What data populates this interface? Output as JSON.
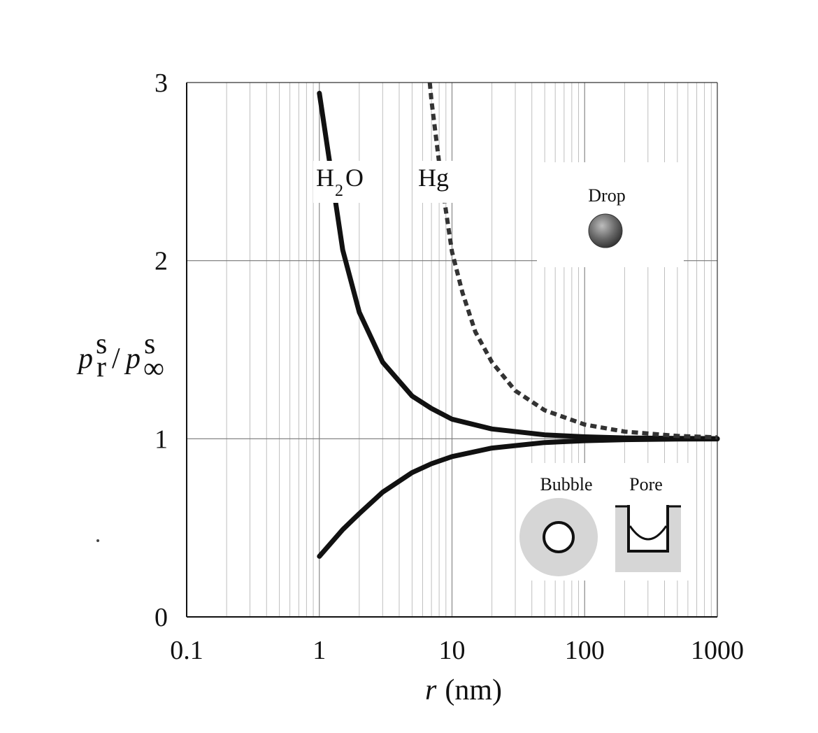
{
  "chart_data": {
    "type": "line",
    "xscale": "log",
    "xlim": [
      0.1,
      1000
    ],
    "ylim": [
      0,
      3
    ],
    "x_ticks": [
      "0.1",
      "1",
      "10",
      "100",
      "1000"
    ],
    "y_ticks": [
      "0",
      "1",
      "2",
      "3"
    ],
    "xlabel_var": "r",
    "xlabel_unit": "(nm)",
    "ylabel": "p_r^s / p_∞^s",
    "grid": true,
    "series": [
      {
        "name": "H2O",
        "style": "solid",
        "color": "#111111",
        "x": [
          1,
          1.5,
          2,
          3,
          5,
          7,
          10,
          20,
          50,
          100,
          200,
          500,
          1000
        ],
        "y": [
          2.94,
          2.06,
          1.71,
          1.43,
          1.24,
          1.17,
          1.11,
          1.055,
          1.022,
          1.011,
          1.005,
          1.002,
          1.001
        ]
      },
      {
        "name": "H2O",
        "style": "solid",
        "color": "#111111",
        "x": [
          1,
          1.5,
          2,
          3,
          5,
          7,
          10,
          20,
          50,
          100,
          200,
          500,
          1000
        ],
        "y": [
          0.34,
          0.49,
          0.58,
          0.7,
          0.81,
          0.86,
          0.9,
          0.948,
          0.979,
          0.989,
          0.995,
          0.998,
          0.999
        ]
      },
      {
        "name": "Hg",
        "style": "dashed",
        "color": "#333333",
        "x": [
          6.8,
          7,
          8,
          9,
          10,
          12,
          15,
          20,
          30,
          50,
          100,
          200,
          500,
          1000
        ],
        "y": [
          3.0,
          2.9,
          2.55,
          2.28,
          2.05,
          1.82,
          1.6,
          1.43,
          1.27,
          1.16,
          1.08,
          1.04,
          1.016,
          1.008
        ]
      }
    ],
    "curve_labels": {
      "h2o_main": "H",
      "h2o_sub": "2",
      "h2o_tail": "O",
      "hg": "Hg"
    },
    "insets": {
      "drop": "Drop",
      "bubble": "Bubble",
      "pore": "Pore"
    }
  }
}
